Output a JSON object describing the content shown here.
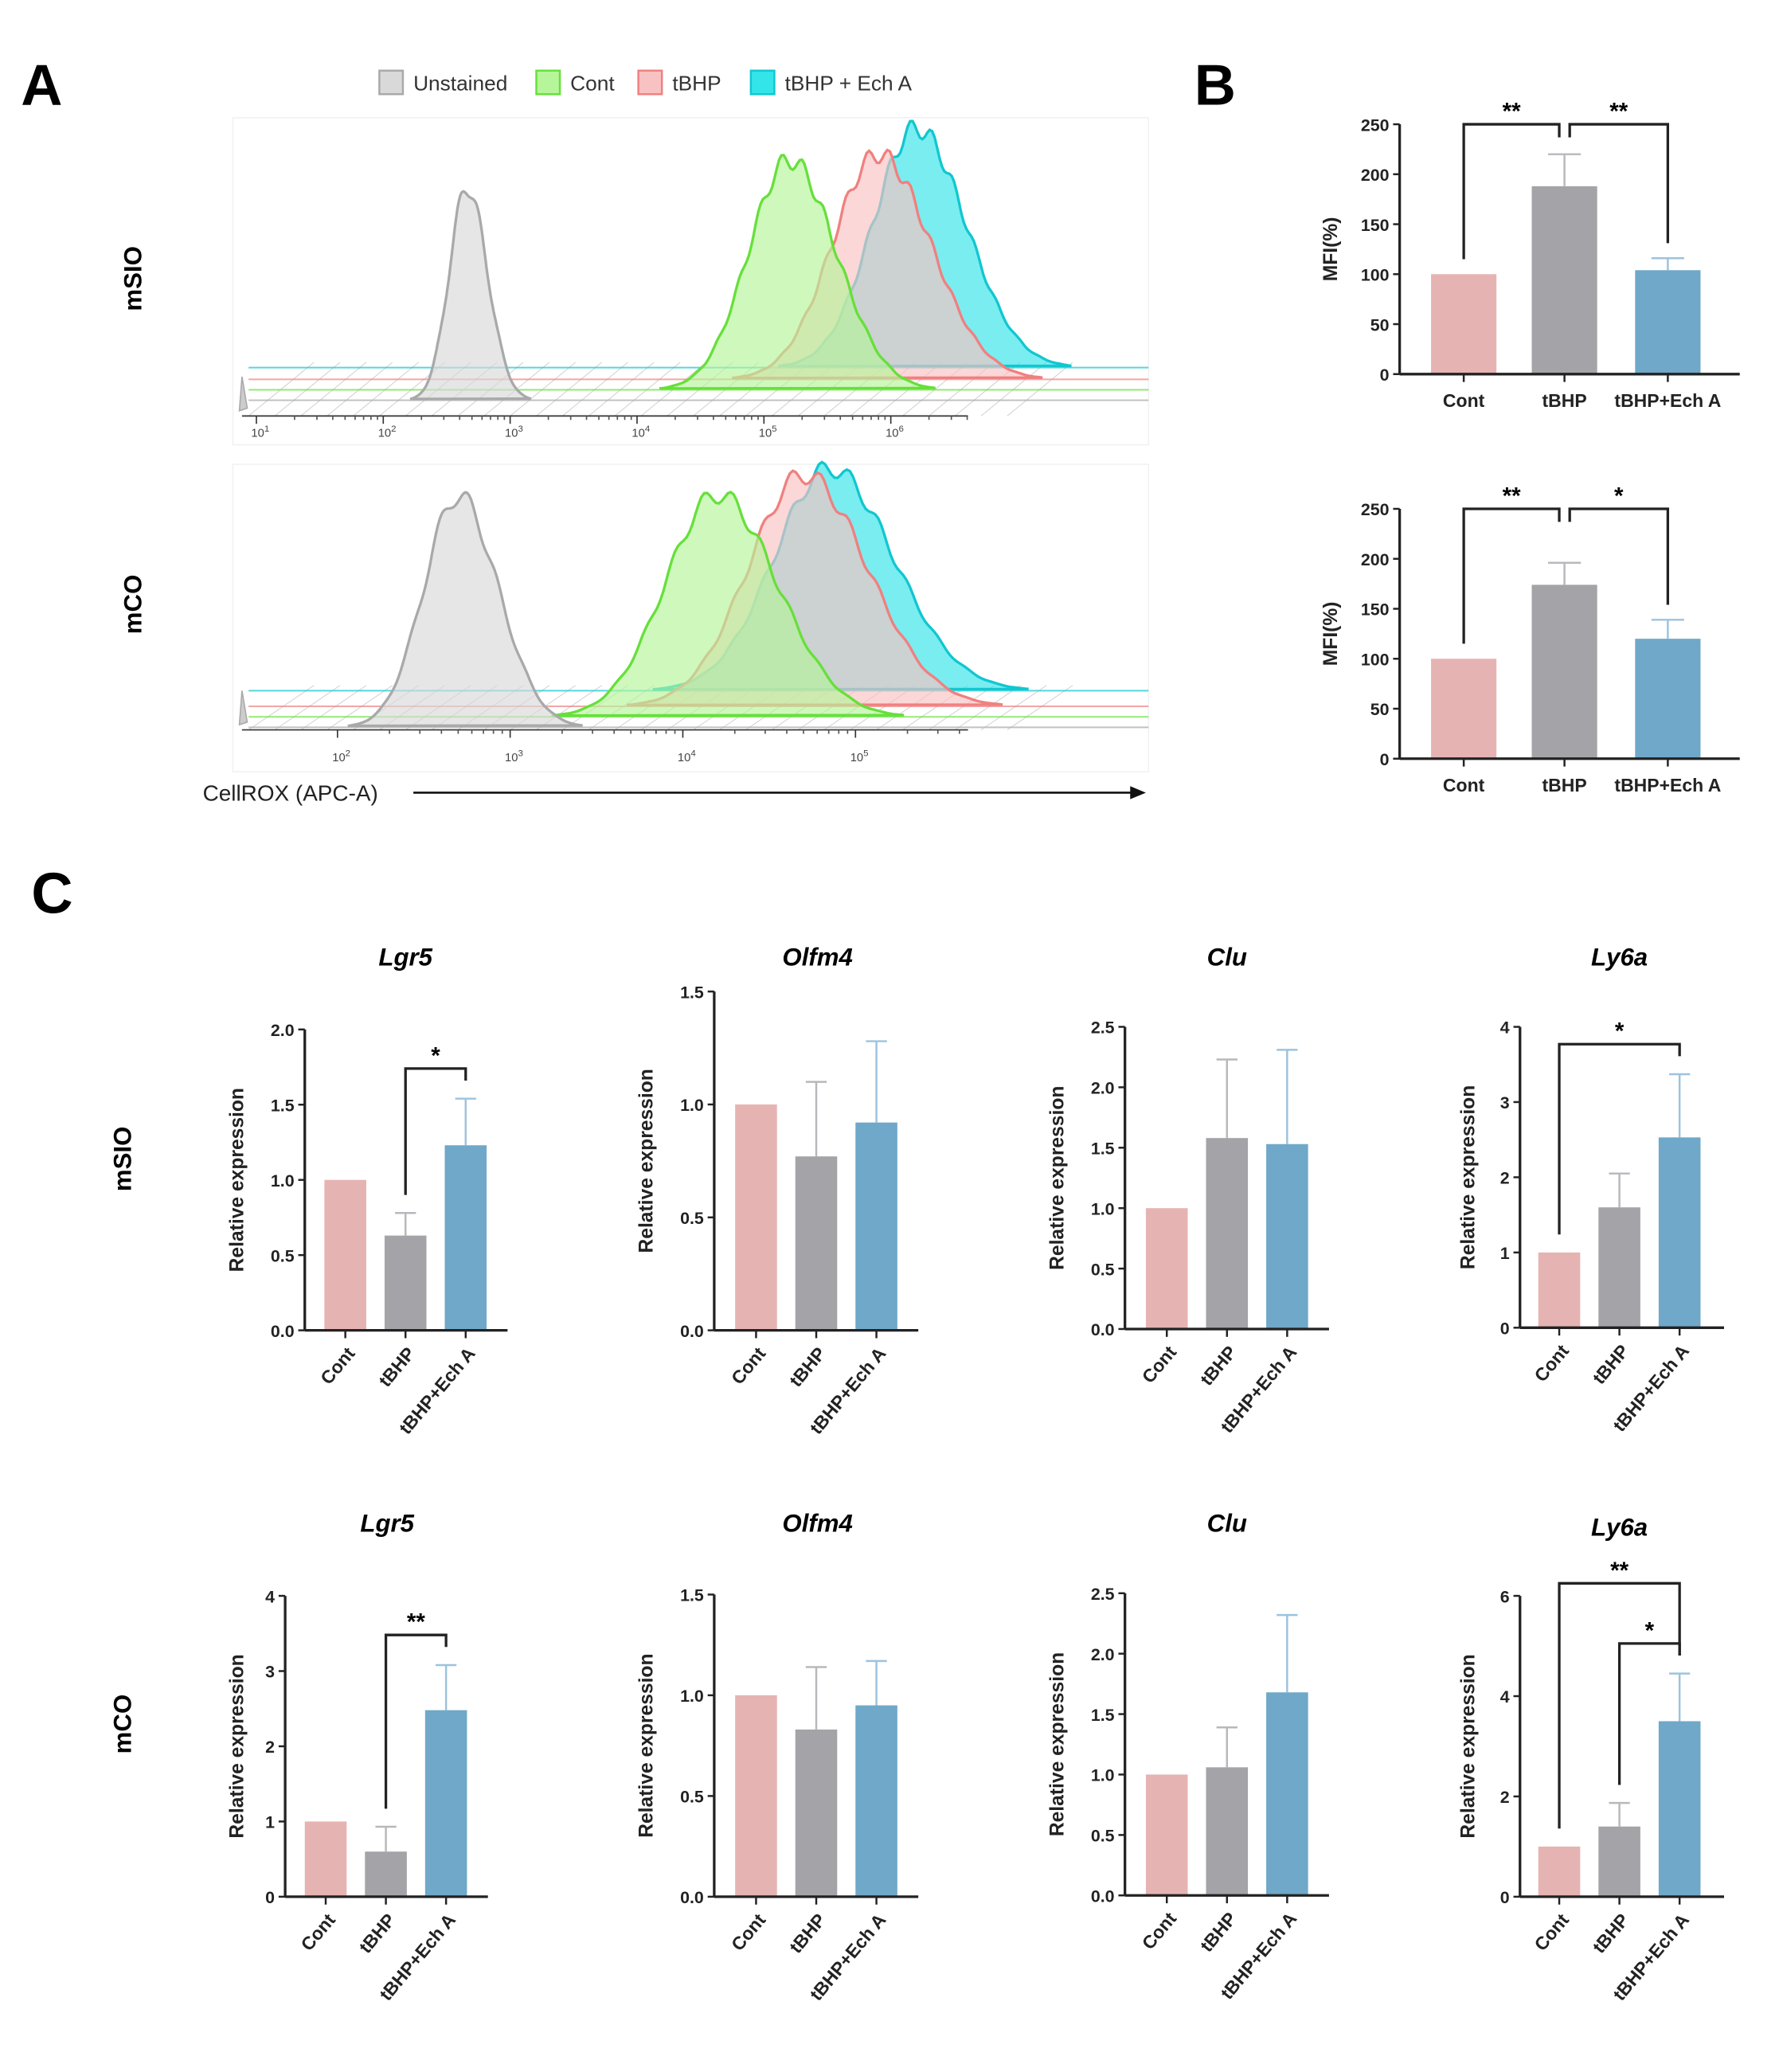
{
  "panel_labels": {
    "a": "A",
    "b": "B",
    "c": "C"
  },
  "chart_data": [
    {
      "type": "histogram",
      "legend": [
        {
          "label": "Unstained",
          "fill": "#d9d9d9",
          "edge": "#a9a9a9"
        },
        {
          "label": "Cont",
          "fill": "#b6f59a",
          "edge": "#66e03a"
        },
        {
          "label": "tBHP",
          "fill": "#f9c2c2",
          "edge": "#f08080"
        },
        {
          "label": "tBHP + Ech A",
          "fill": "#33e4e8",
          "edge": "#10c7d0"
        }
      ],
      "xlabel": "CellROX (APC-A)",
      "xscale": "log10",
      "panels": [
        {
          "row_label": "mSIO",
          "x_ticks": [
            {
              "base": "10",
              "exp": "1"
            },
            {
              "base": "10",
              "exp": "2"
            },
            {
              "base": "10",
              "exp": "3"
            },
            {
              "base": "10",
              "exp": "4"
            },
            {
              "base": "10",
              "exp": "5"
            },
            {
              "base": "10",
              "exp": "6"
            }
          ],
          "series": [
            {
              "name": "Unstained",
              "center_log10": 2.66,
              "sd_log10": 0.14,
              "rel_height": 0.89
            },
            {
              "name": "Cont",
              "center_log10": 5.2,
              "sd_log10": 0.32,
              "rel_height": 0.96
            },
            {
              "name": "tBHP",
              "center_log10": 5.9,
              "sd_log10": 0.36,
              "rel_height": 0.94
            },
            {
              "name": "tBHP + Ech A",
              "center_log10": 6.2,
              "sd_log10": 0.34,
              "rel_height": 1.0
            }
          ]
        },
        {
          "row_label": "mCO",
          "x_ticks": [
            {
              "base": "10",
              "exp": "2"
            },
            {
              "base": "10",
              "exp": "3"
            },
            {
              "base": "10",
              "exp": "4"
            },
            {
              "base": "10",
              "exp": "5"
            }
          ],
          "series": [
            {
              "name": "Unstained",
              "center_log10": 2.7,
              "sd_log10": 0.2,
              "rel_height": 1.0
            },
            {
              "name": "Cont",
              "center_log10": 4.2,
              "sd_log10": 0.3,
              "rel_height": 0.96
            },
            {
              "name": "tBHP",
              "center_log10": 4.7,
              "sd_log10": 0.32,
              "rel_height": 1.0
            },
            {
              "name": "tBHP + Ech A",
              "center_log10": 4.85,
              "sd_log10": 0.32,
              "rel_height": 0.96
            }
          ]
        }
      ]
    },
    {
      "type": "bar",
      "panel": "B",
      "row": "mSIO",
      "title": "",
      "ylabel": "MFI(%)",
      "ylim": [
        0,
        250
      ],
      "y_ticks": [
        "0",
        "50",
        "100",
        "150",
        "200",
        "250"
      ],
      "categories": [
        "Cont",
        "tBHP",
        "tBHP+Ech A"
      ],
      "values": [
        100,
        188,
        104
      ],
      "errors": [
        0,
        32,
        12
      ],
      "significance": [
        {
          "from": 0,
          "to": 1,
          "label": "**"
        },
        {
          "from": 1,
          "to": 2,
          "label": "**"
        }
      ]
    },
    {
      "type": "bar",
      "panel": "B",
      "row": "mCO",
      "title": "",
      "ylabel": "MFI(%)",
      "ylim": [
        0,
        250
      ],
      "y_ticks": [
        "0",
        "50",
        "100",
        "150",
        "200",
        "250"
      ],
      "categories": [
        "Cont",
        "tBHP",
        "tBHP+Ech A"
      ],
      "values": [
        100,
        174,
        120
      ],
      "errors": [
        0,
        22,
        19
      ],
      "significance": [
        {
          "from": 0,
          "to": 1,
          "label": "**"
        },
        {
          "from": 1,
          "to": 2,
          "label": "*"
        }
      ]
    },
    {
      "type": "bar",
      "panel": "C",
      "row": "mSIO",
      "title": "Lgr5",
      "ylabel": "Relative expression",
      "ylim": [
        0,
        2
      ],
      "y_ticks": [
        "0.0",
        "0.5",
        "1.0",
        "1.5",
        "2.0"
      ],
      "categories": [
        "Cont",
        "tBHP",
        "tBHP+Ech A"
      ],
      "values": [
        1.0,
        0.63,
        1.23
      ],
      "errors": [
        0,
        0.15,
        0.31
      ],
      "significance": [
        {
          "from": 1,
          "to": 2,
          "label": "*"
        }
      ]
    },
    {
      "type": "bar",
      "panel": "C",
      "row": "mSIO",
      "title": "Olfm4",
      "ylabel": "Relative expression",
      "ylim": [
        0,
        1.5
      ],
      "y_ticks": [
        "0.0",
        "0.5",
        "1.0",
        "1.5"
      ],
      "categories": [
        "Cont",
        "tBHP",
        "tBHP+Ech A"
      ],
      "values": [
        1.0,
        0.77,
        0.92
      ],
      "errors": [
        0,
        0.33,
        0.36
      ],
      "significance": []
    },
    {
      "type": "bar",
      "panel": "C",
      "row": "mSIO",
      "title": "Clu",
      "ylabel": "Relative expression",
      "ylim": [
        0,
        2.5
      ],
      "y_ticks": [
        "0.0",
        "0.5",
        "1.0",
        "1.5",
        "2.0",
        "2.5"
      ],
      "categories": [
        "Cont",
        "tBHP",
        "tBHP+Ech A"
      ],
      "values": [
        1.0,
        1.58,
        1.53
      ],
      "errors": [
        0,
        0.65,
        0.78
      ],
      "significance": []
    },
    {
      "type": "bar",
      "panel": "C",
      "row": "mSIO",
      "title": "Ly6a",
      "ylabel": "Relative expression",
      "ylim": [
        0,
        4
      ],
      "y_ticks": [
        "0",
        "1",
        "2",
        "3",
        "4"
      ],
      "categories": [
        "Cont",
        "tBHP",
        "tBHP+Ech A"
      ],
      "values": [
        1.0,
        1.6,
        2.53
      ],
      "errors": [
        0,
        0.45,
        0.84
      ],
      "significance": [
        {
          "from": 0,
          "to": 2,
          "label": "*"
        }
      ]
    },
    {
      "type": "bar",
      "panel": "C",
      "row": "mCO",
      "title": "Lgr5",
      "ylabel": "Relative expression",
      "ylim": [
        0,
        4
      ],
      "y_ticks": [
        "0",
        "1",
        "2",
        "3",
        "4"
      ],
      "categories": [
        "Cont",
        "tBHP",
        "tBHP+Ech A"
      ],
      "values": [
        1.0,
        0.6,
        2.48
      ],
      "errors": [
        0,
        0.33,
        0.6
      ],
      "significance": [
        {
          "from": 1,
          "to": 2,
          "label": "**"
        }
      ]
    },
    {
      "type": "bar",
      "panel": "C",
      "row": "mCO",
      "title": "Olfm4",
      "ylabel": "Relative expression",
      "ylim": [
        0,
        1.5
      ],
      "y_ticks": [
        "0.0",
        "0.5",
        "1.0",
        "1.5"
      ],
      "categories": [
        "Cont",
        "tBHP",
        "tBHP+Ech A"
      ],
      "values": [
        1.0,
        0.83,
        0.95
      ],
      "errors": [
        0,
        0.31,
        0.22
      ],
      "significance": []
    },
    {
      "type": "bar",
      "panel": "C",
      "row": "mCO",
      "title": "Clu",
      "ylabel": "Relative expression",
      "ylim": [
        0,
        2.5
      ],
      "y_ticks": [
        "0.0",
        "0.5",
        "1.0",
        "1.5",
        "2.0",
        "2.5"
      ],
      "categories": [
        "Cont",
        "tBHP",
        "tBHP+Ech A"
      ],
      "values": [
        1.0,
        1.06,
        1.68
      ],
      "errors": [
        0,
        0.33,
        0.64
      ],
      "significance": []
    },
    {
      "type": "bar",
      "panel": "C",
      "row": "mCO",
      "title": "Ly6a",
      "ylabel": "Relative expression",
      "ylim": [
        0,
        6
      ],
      "y_ticks": [
        "0",
        "2",
        "4",
        "6"
      ],
      "categories": [
        "Cont",
        "tBHP",
        "tBHP+Ech A"
      ],
      "values": [
        1.0,
        1.4,
        3.5
      ],
      "errors": [
        0,
        0.47,
        0.95
      ],
      "significance": [
        {
          "from": 1,
          "to": 2,
          "label": "*"
        },
        {
          "from": 0,
          "to": 2,
          "label": "**"
        }
      ]
    }
  ],
  "colors": {
    "cont": "#e6b3b3",
    "tbhp": "#a4a3a8",
    "echa": "#6fa8c8",
    "cont_err": "#e8c4c4",
    "tbhp_err": "#b8b8bc",
    "echa_err": "#9cc3de"
  },
  "c_row_labels": [
    "mSIO",
    "mCO"
  ]
}
